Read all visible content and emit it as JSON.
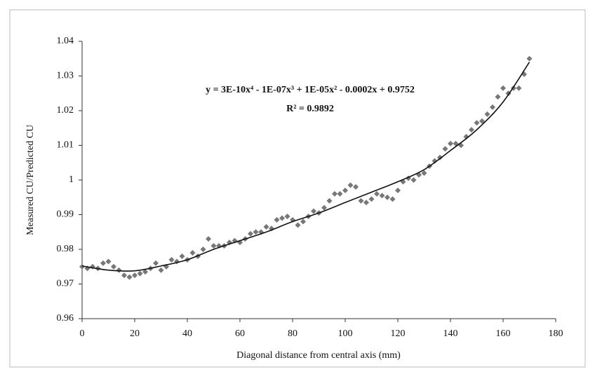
{
  "chart_data": {
    "type": "scatter",
    "x_label": "Diagonal distance from central axis  (mm)",
    "y_label": "Measured  CU/Predicted CU",
    "annotations": [
      "y = 3E-10x⁴ - 1E-07x³ + 1E-05x² - 0.0002x + 0.9752",
      "R² = 0.9892"
    ],
    "xlim": [
      0,
      180
    ],
    "xticks": [
      0,
      20,
      40,
      60,
      80,
      100,
      120,
      140,
      160,
      180
    ],
    "ylim": [
      0.96,
      1.04
    ],
    "yticks": [
      0.96,
      0.97,
      0.98,
      0.99,
      1,
      1.01,
      1.02,
      1.03,
      1.04
    ],
    "series": [
      {
        "color": "#777777",
        "x": [
          0,
          2,
          4,
          6,
          8,
          10,
          12,
          14,
          16,
          18,
          20,
          22,
          24,
          26,
          28,
          30,
          32,
          34,
          36,
          38,
          40,
          42,
          44,
          46,
          48,
          50,
          52,
          54,
          56,
          58,
          60,
          62,
          64,
          66,
          68,
          70,
          72,
          74,
          76,
          78,
          80,
          82,
          84,
          86,
          88,
          90,
          92,
          94,
          96,
          98,
          100,
          102,
          104,
          106,
          108,
          110,
          112,
          114,
          116,
          118,
          120,
          122,
          124,
          126,
          128,
          130,
          132,
          134,
          136,
          138,
          140,
          142,
          144,
          146,
          148,
          150,
          152,
          154,
          156,
          158,
          160,
          162,
          164,
          166,
          168,
          170
        ],
        "values": [
          0.975,
          0.9745,
          0.975,
          0.9745,
          0.976,
          0.9765,
          0.975,
          0.974,
          0.9725,
          0.972,
          0.9725,
          0.973,
          0.9735,
          0.9745,
          0.976,
          0.974,
          0.975,
          0.977,
          0.9765,
          0.978,
          0.977,
          0.979,
          0.978,
          0.98,
          0.983,
          0.981,
          0.981,
          0.981,
          0.982,
          0.9825,
          0.982,
          0.983,
          0.9845,
          0.985,
          0.985,
          0.9865,
          0.986,
          0.9885,
          0.989,
          0.9895,
          0.9885,
          0.987,
          0.988,
          0.9895,
          0.991,
          0.9905,
          0.992,
          0.994,
          0.996,
          0.996,
          0.997,
          0.9985,
          0.998,
          0.994,
          0.9935,
          0.9945,
          0.996,
          0.9955,
          0.995,
          0.9945,
          0.997,
          0.9995,
          1.0005,
          1.0,
          1.0015,
          1.002,
          1.004,
          1.0055,
          1.0065,
          1.009,
          1.0105,
          1.0105,
          1.01,
          1.0125,
          1.0145,
          1.0165,
          1.017,
          1.019,
          1.021,
          1.024,
          1.0265,
          1.025,
          1.0265,
          1.0265,
          1.0305,
          1.035
        ]
      },
      {
        "color": "#111111",
        "line": true,
        "x": [
          0,
          10,
          20,
          30,
          40,
          50,
          60,
          70,
          80,
          90,
          100,
          110,
          120,
          130,
          140,
          150,
          160,
          170
        ],
        "values": [
          0.9752,
          0.974,
          0.9738,
          0.9752,
          0.977,
          0.98,
          0.9825,
          0.985,
          0.988,
          0.9905,
          0.9935,
          0.9965,
          0.9995,
          1.003,
          1.0085,
          1.0145,
          1.0225,
          1.034
        ]
      }
    ]
  }
}
